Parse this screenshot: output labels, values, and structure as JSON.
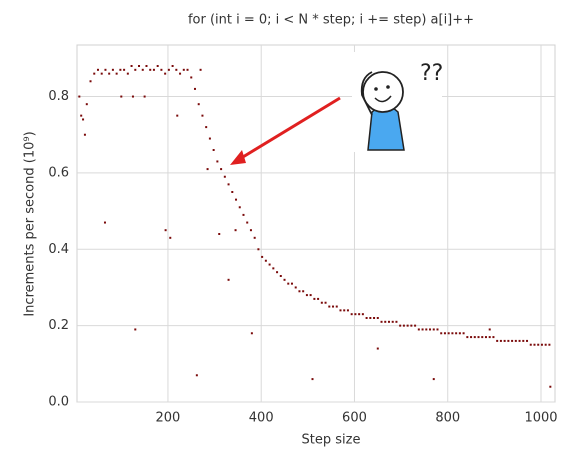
{
  "chart_data": {
    "type": "scatter",
    "title": "for (int i = 0; i < N * step; i += step) a[i]++",
    "x_label": "Step size",
    "y_label": "Increments per second (10⁹)",
    "color": "#7a0a0a",
    "grid": true,
    "xlim": [
      5,
      1030
    ],
    "ylim": [
      0,
      0.935
    ],
    "xticks": [
      200,
      400,
      600,
      800,
      1000
    ],
    "yticks": [
      {
        "value": 0,
        "label": "0.0"
      },
      0.2,
      0.4,
      0.6,
      0.8
    ],
    "x": [
      10,
      18,
      26,
      34,
      42,
      50,
      58,
      66,
      74,
      82,
      90,
      98,
      106,
      114,
      122,
      130,
      138,
      146,
      154,
      162,
      170,
      178,
      186,
      194,
      202,
      210,
      218,
      226,
      234,
      242,
      250,
      258,
      266,
      274,
      282,
      290,
      298,
      306,
      314,
      322,
      330,
      338,
      346,
      354,
      362,
      370,
      378,
      386,
      394,
      402,
      410,
      418,
      426,
      434,
      442,
      450,
      458,
      466,
      474,
      482,
      490,
      498,
      506,
      514,
      522,
      530,
      538,
      546,
      554,
      562,
      570,
      578,
      586,
      594,
      602,
      610,
      618,
      626,
      634,
      642,
      650,
      658,
      666,
      674,
      682,
      690,
      698,
      706,
      714,
      722,
      730,
      738,
      746,
      754,
      762,
      770,
      778,
      786,
      794,
      802,
      810,
      818,
      826,
      834,
      842,
      850,
      858,
      866,
      874,
      882,
      890,
      898,
      906,
      914,
      922,
      930,
      938,
      946,
      954,
      962,
      970,
      978,
      986,
      994,
      1002,
      1010,
      1018,
      65,
      130,
      195,
      205,
      220,
      262,
      270,
      285,
      310,
      330,
      345,
      380,
      510,
      650,
      770,
      890,
      1020,
      125,
      150,
      100,
      14,
      22
    ],
    "values": [
      0.8,
      0.74,
      0.78,
      0.84,
      0.86,
      0.87,
      0.86,
      0.87,
      0.86,
      0.87,
      0.86,
      0.87,
      0.87,
      0.86,
      0.88,
      0.87,
      0.88,
      0.87,
      0.88,
      0.87,
      0.87,
      0.88,
      0.87,
      0.86,
      0.87,
      0.88,
      0.87,
      0.86,
      0.87,
      0.87,
      0.85,
      0.82,
      0.78,
      0.75,
      0.72,
      0.69,
      0.66,
      0.63,
      0.61,
      0.59,
      0.57,
      0.55,
      0.53,
      0.51,
      0.49,
      0.47,
      0.45,
      0.43,
      0.4,
      0.38,
      0.37,
      0.36,
      0.35,
      0.34,
      0.33,
      0.32,
      0.31,
      0.31,
      0.3,
      0.29,
      0.29,
      0.28,
      0.28,
      0.27,
      0.27,
      0.26,
      0.26,
      0.25,
      0.25,
      0.25,
      0.24,
      0.24,
      0.24,
      0.23,
      0.23,
      0.23,
      0.23,
      0.22,
      0.22,
      0.22,
      0.22,
      0.21,
      0.21,
      0.21,
      0.21,
      0.21,
      0.2,
      0.2,
      0.2,
      0.2,
      0.2,
      0.19,
      0.19,
      0.19,
      0.19,
      0.19,
      0.19,
      0.18,
      0.18,
      0.18,
      0.18,
      0.18,
      0.18,
      0.18,
      0.17,
      0.17,
      0.17,
      0.17,
      0.17,
      0.17,
      0.17,
      0.17,
      0.16,
      0.16,
      0.16,
      0.16,
      0.16,
      0.16,
      0.16,
      0.16,
      0.16,
      0.15,
      0.15,
      0.15,
      0.15,
      0.15,
      0.15,
      0.47,
      0.19,
      0.45,
      0.43,
      0.75,
      0.07,
      0.87,
      0.61,
      0.44,
      0.32,
      0.45,
      0.18,
      0.06,
      0.14,
      0.06,
      0.19,
      0.04,
      0.8,
      0.8,
      0.8,
      0.75,
      0.7
    ]
  }
}
